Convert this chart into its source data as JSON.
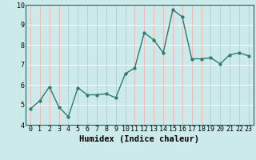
{
  "x": [
    0,
    1,
    2,
    3,
    4,
    5,
    6,
    7,
    8,
    9,
    10,
    11,
    12,
    13,
    14,
    15,
    16,
    17,
    18,
    19,
    20,
    21,
    22,
    23
  ],
  "y": [
    4.8,
    5.2,
    5.9,
    4.9,
    4.4,
    5.85,
    5.5,
    5.5,
    5.55,
    5.35,
    6.55,
    6.85,
    8.6,
    8.25,
    7.6,
    9.75,
    9.4,
    7.3,
    7.3,
    7.35,
    7.05,
    7.5,
    7.6,
    7.45
  ],
  "line_color": "#2d7a6e",
  "bg_color": "#cceaea",
  "grid_color": "#ffffff",
  "xlabel": "Humidex (Indice chaleur)",
  "ylim": [
    4,
    10
  ],
  "xlim": [
    -0.5,
    23.5
  ],
  "yticks": [
    4,
    5,
    6,
    7,
    8,
    9,
    10
  ],
  "xticks": [
    0,
    1,
    2,
    3,
    4,
    5,
    6,
    7,
    8,
    9,
    10,
    11,
    12,
    13,
    14,
    15,
    16,
    17,
    18,
    19,
    20,
    21,
    22,
    23
  ],
  "xtick_labels": [
    "0",
    "1",
    "2",
    "3",
    "4",
    "5",
    "6",
    "7",
    "8",
    "9",
    "10",
    "11",
    "12",
    "13",
    "14",
    "15",
    "16",
    "17",
    "18",
    "19",
    "20",
    "21",
    "22",
    "23"
  ],
  "marker_size": 2.5,
  "line_width": 1.0,
  "xlabel_fontsize": 7.5,
  "tick_fontsize": 6.0
}
